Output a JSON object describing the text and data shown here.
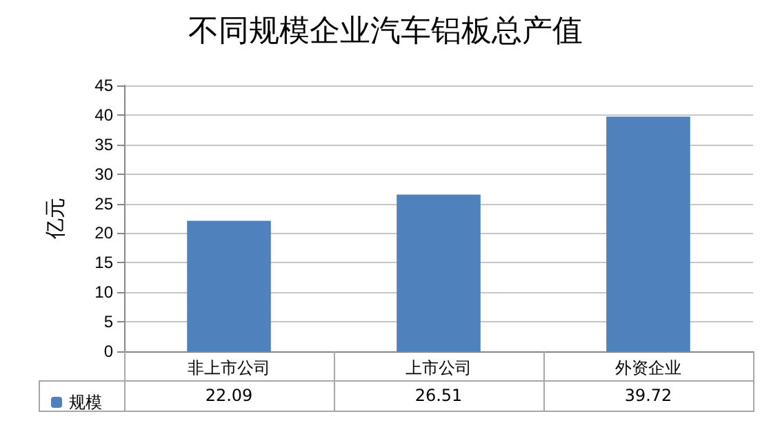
{
  "chart_data": {
    "type": "bar",
    "title": "不同规模企业汽车铝板总产值",
    "ylabel": "亿元",
    "categories": [
      "非上市公司",
      "上市公司",
      "外资企业"
    ],
    "series": [
      {
        "name": "规模",
        "color": "#4f81bd",
        "values": [
          22.09,
          26.51,
          39.72
        ]
      }
    ],
    "ylim": [
      0,
      45
    ],
    "yticks": [
      0,
      5,
      10,
      15,
      20,
      25,
      30,
      35,
      40,
      45
    ],
    "grid": "y",
    "legend": "bottom left",
    "data_labels": true
  }
}
